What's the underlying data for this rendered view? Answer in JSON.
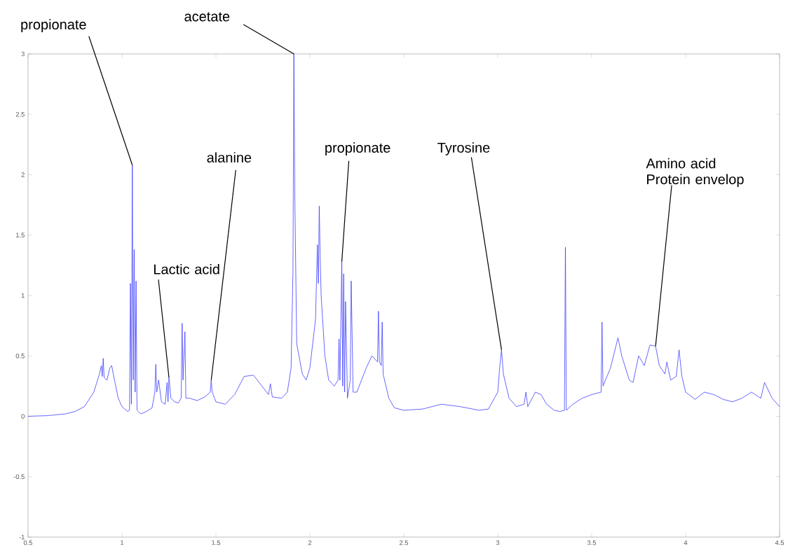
{
  "chart_data": {
    "type": "line",
    "color": "#4040ff",
    "x": [
      0.5,
      0.6,
      0.7,
      0.75,
      0.8,
      0.85,
      0.88,
      0.89,
      0.895,
      0.9,
      0.905,
      0.92,
      0.935,
      0.945,
      0.96,
      0.98,
      1.0,
      1.03,
      1.04,
      1.045,
      1.05,
      1.055,
      1.06,
      1.065,
      1.07,
      1.075,
      1.08,
      1.1,
      1.13,
      1.16,
      1.175,
      1.18,
      1.185,
      1.195,
      1.21,
      1.23,
      1.24,
      1.245,
      1.25,
      1.26,
      1.28,
      1.3,
      1.315,
      1.32,
      1.325,
      1.335,
      1.34,
      1.36,
      1.4,
      1.44,
      1.47,
      1.475,
      1.48,
      1.5,
      1.55,
      1.6,
      1.65,
      1.7,
      1.75,
      1.78,
      1.79,
      1.8,
      1.85,
      1.88,
      1.9,
      1.91,
      1.915,
      1.92,
      1.93,
      1.96,
      1.98,
      2.0,
      2.03,
      2.04,
      2.045,
      2.05,
      2.055,
      2.06,
      2.08,
      2.1,
      2.13,
      2.15,
      2.155,
      2.16,
      2.17,
      2.175,
      2.18,
      2.185,
      2.19,
      2.2,
      2.215,
      2.22,
      2.23,
      2.25,
      2.3,
      2.33,
      2.36,
      2.365,
      2.37,
      2.38,
      2.385,
      2.39,
      2.42,
      2.45,
      2.5,
      2.6,
      2.7,
      2.8,
      2.9,
      2.95,
      3.0,
      3.01,
      3.02,
      3.03,
      3.06,
      3.1,
      3.14,
      3.15,
      3.16,
      3.2,
      3.23,
      3.26,
      3.3,
      3.33,
      3.355,
      3.36,
      3.365,
      3.4,
      3.45,
      3.5,
      3.55,
      3.555,
      3.56,
      3.6,
      3.64,
      3.66,
      3.7,
      3.72,
      3.75,
      3.78,
      3.81,
      3.84,
      3.86,
      3.89,
      3.9,
      3.92,
      3.95,
      3.965,
      3.98,
      4.0,
      4.05,
      4.1,
      4.15,
      4.2,
      4.25,
      4.3,
      4.35,
      4.4,
      4.42,
      4.46,
      4.5
    ],
    "values": [
      0.0,
      0.005,
      0.02,
      0.04,
      0.08,
      0.2,
      0.35,
      0.42,
      0.33,
      0.48,
      0.32,
      0.3,
      0.4,
      0.42,
      0.3,
      0.15,
      0.08,
      0.04,
      0.05,
      1.1,
      0.1,
      2.08,
      0.3,
      1.38,
      0.2,
      1.12,
      0.05,
      0.02,
      0.04,
      0.07,
      0.2,
      0.43,
      0.2,
      0.3,
      0.12,
      0.1,
      0.28,
      0.12,
      0.32,
      0.15,
      0.12,
      0.11,
      0.15,
      0.77,
      0.3,
      0.7,
      0.15,
      0.15,
      0.13,
      0.16,
      0.2,
      0.3,
      0.2,
      0.12,
      0.1,
      0.18,
      0.33,
      0.34,
      0.24,
      0.18,
      0.27,
      0.16,
      0.15,
      0.2,
      0.4,
      1.2,
      3.0,
      1.8,
      0.6,
      0.35,
      0.3,
      0.4,
      0.8,
      1.42,
      1.1,
      1.74,
      1.3,
      1.0,
      0.5,
      0.3,
      0.25,
      0.3,
      0.64,
      0.3,
      1.28,
      0.25,
      1.18,
      0.2,
      0.95,
      0.15,
      0.3,
      1.12,
      0.2,
      0.2,
      0.4,
      0.5,
      0.45,
      0.87,
      0.45,
      0.42,
      0.78,
      0.35,
      0.15,
      0.07,
      0.05,
      0.06,
      0.1,
      0.08,
      0.05,
      0.06,
      0.2,
      0.4,
      0.55,
      0.35,
      0.15,
      0.08,
      0.1,
      0.2,
      0.08,
      0.2,
      0.18,
      0.1,
      0.05,
      0.04,
      0.05,
      1.4,
      0.05,
      0.1,
      0.15,
      0.18,
      0.2,
      0.78,
      0.25,
      0.4,
      0.65,
      0.5,
      0.3,
      0.28,
      0.5,
      0.42,
      0.59,
      0.58,
      0.42,
      0.35,
      0.45,
      0.3,
      0.33,
      0.55,
      0.33,
      0.2,
      0.14,
      0.2,
      0.18,
      0.14,
      0.12,
      0.15,
      0.2,
      0.15,
      0.28,
      0.15,
      0.08
    ],
    "xlim": [
      0.5,
      4.5
    ],
    "ylim": [
      -1,
      3
    ],
    "xticks": [
      0.5,
      1,
      1.5,
      2,
      2.5,
      3,
      3.5,
      4,
      4.5
    ],
    "yticks": [
      -1,
      -0.5,
      0,
      0.5,
      1,
      1.5,
      2,
      2.5,
      3
    ],
    "grid": false,
    "marker": "none",
    "line_style": "solid",
    "annotations": [
      {
        "text": "propionate",
        "x": 1.055,
        "y": 2.08
      },
      {
        "text": "acetate",
        "x": 1.915,
        "y": 3.0
      },
      {
        "text": "alanine",
        "x": 1.475,
        "y": 0.3
      },
      {
        "text": "Lactic acid",
        "x": 1.25,
        "y": 0.32
      },
      {
        "text": "propionate",
        "x": 2.17,
        "y": 1.28
      },
      {
        "text": "Tyrosine",
        "x": 3.02,
        "y": 0.55
      },
      {
        "text": "Amino acid Protein envelop",
        "x": 3.84,
        "y": 0.58
      }
    ]
  }
}
